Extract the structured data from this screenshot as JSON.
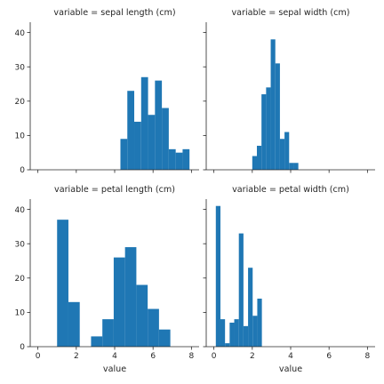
{
  "chart_data": [
    {
      "type": "bar",
      "title": "variable = sepal length (cm)",
      "xlabel": "",
      "ylabel": "",
      "xlim": [
        -0.4,
        8.4
      ],
      "ylim": [
        0,
        43
      ],
      "xticks": [
        0,
        2,
        4,
        6,
        8
      ],
      "yticks": [
        0,
        10,
        20,
        30,
        40
      ],
      "show_x_tick_labels": false,
      "show_y_tick_labels": true,
      "bins": [
        {
          "x0": 4.3,
          "x1": 4.66,
          "count": 9
        },
        {
          "x0": 4.66,
          "x1": 5.02,
          "count": 23
        },
        {
          "x0": 5.02,
          "x1": 5.38,
          "count": 14
        },
        {
          "x0": 5.38,
          "x1": 5.74,
          "count": 27
        },
        {
          "x0": 5.74,
          "x1": 6.1,
          "count": 16
        },
        {
          "x0": 6.1,
          "x1": 6.46,
          "count": 26
        },
        {
          "x0": 6.46,
          "x1": 6.82,
          "count": 18
        },
        {
          "x0": 6.82,
          "x1": 7.18,
          "count": 6
        },
        {
          "x0": 7.18,
          "x1": 7.54,
          "count": 5
        },
        {
          "x0": 7.54,
          "x1": 7.9,
          "count": 6
        }
      ]
    },
    {
      "type": "bar",
      "title": "variable = sepal width (cm)",
      "xlabel": "",
      "ylabel": "",
      "xlim": [
        -0.4,
        8.4
      ],
      "ylim": [
        0,
        43
      ],
      "xticks": [
        0,
        2,
        4,
        6,
        8
      ],
      "yticks": [
        0,
        10,
        20,
        30,
        40
      ],
      "show_x_tick_labels": false,
      "show_y_tick_labels": false,
      "bins": [
        {
          "x0": 2.0,
          "x1": 2.24,
          "count": 4
        },
        {
          "x0": 2.24,
          "x1": 2.48,
          "count": 7
        },
        {
          "x0": 2.48,
          "x1": 2.72,
          "count": 22
        },
        {
          "x0": 2.72,
          "x1": 2.96,
          "count": 24
        },
        {
          "x0": 2.96,
          "x1": 3.2,
          "count": 38
        },
        {
          "x0": 3.2,
          "x1": 3.44,
          "count": 31
        },
        {
          "x0": 3.44,
          "x1": 3.68,
          "count": 9
        },
        {
          "x0": 3.68,
          "x1": 3.92,
          "count": 11
        },
        {
          "x0": 3.92,
          "x1": 4.16,
          "count": 2
        },
        {
          "x0": 4.16,
          "x1": 4.4,
          "count": 2
        }
      ]
    },
    {
      "type": "bar",
      "title": "variable = petal length (cm)",
      "xlabel": "value",
      "ylabel": "",
      "xlim": [
        -0.4,
        8.4
      ],
      "ylim": [
        0,
        43
      ],
      "xticks": [
        0,
        2,
        4,
        6,
        8
      ],
      "yticks": [
        0,
        10,
        20,
        30,
        40
      ],
      "show_x_tick_labels": true,
      "show_y_tick_labels": true,
      "bins": [
        {
          "x0": 1.0,
          "x1": 1.59,
          "count": 37
        },
        {
          "x0": 1.59,
          "x1": 2.18,
          "count": 13
        },
        {
          "x0": 2.18,
          "x1": 2.77,
          "count": 0
        },
        {
          "x0": 2.77,
          "x1": 3.36,
          "count": 3
        },
        {
          "x0": 3.36,
          "x1": 3.95,
          "count": 8
        },
        {
          "x0": 3.95,
          "x1": 4.54,
          "count": 26
        },
        {
          "x0": 4.54,
          "x1": 5.13,
          "count": 29
        },
        {
          "x0": 5.13,
          "x1": 5.72,
          "count": 18
        },
        {
          "x0": 5.72,
          "x1": 6.31,
          "count": 11
        },
        {
          "x0": 6.31,
          "x1": 6.9,
          "count": 5
        }
      ]
    },
    {
      "type": "bar",
      "title": "variable = petal width (cm)",
      "xlabel": "value",
      "ylabel": "",
      "xlim": [
        -0.4,
        8.4
      ],
      "ylim": [
        0,
        43
      ],
      "xticks": [
        0,
        2,
        4,
        6,
        8
      ],
      "yticks": [
        0,
        10,
        20,
        30,
        40
      ],
      "show_x_tick_labels": true,
      "show_y_tick_labels": false,
      "bins": [
        {
          "x0": 0.1,
          "x1": 0.34,
          "count": 41
        },
        {
          "x0": 0.34,
          "x1": 0.58,
          "count": 8
        },
        {
          "x0": 0.58,
          "x1": 0.82,
          "count": 1
        },
        {
          "x0": 0.82,
          "x1": 1.06,
          "count": 7
        },
        {
          "x0": 1.06,
          "x1": 1.3,
          "count": 8
        },
        {
          "x0": 1.3,
          "x1": 1.54,
          "count": 33
        },
        {
          "x0": 1.54,
          "x1": 1.78,
          "count": 6
        },
        {
          "x0": 1.78,
          "x1": 2.02,
          "count": 23
        },
        {
          "x0": 2.02,
          "x1": 2.26,
          "count": 9
        },
        {
          "x0": 2.26,
          "x1": 2.5,
          "count": 14
        }
      ]
    }
  ],
  "style": {
    "bar_color": "#1f77b4",
    "axis_color": "#262626",
    "background": "#ffffff",
    "grid": false
  }
}
